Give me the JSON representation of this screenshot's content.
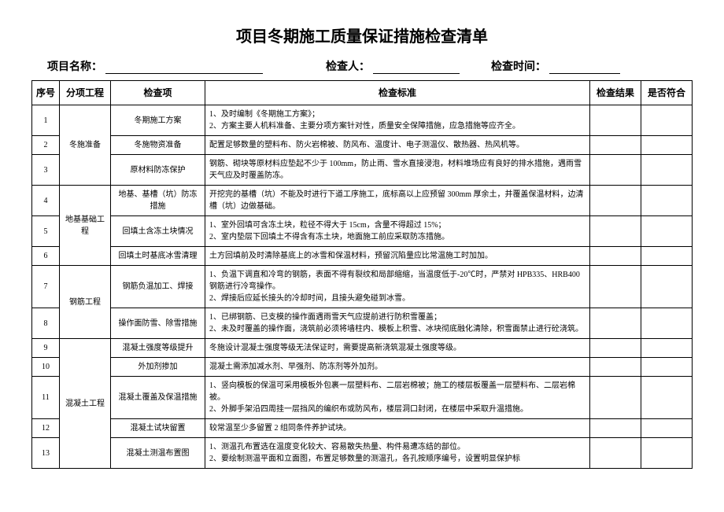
{
  "title": "项目冬期施工质量保证措施检查清单",
  "header": {
    "projectLabel": "项目名称：",
    "inspectorLabel": "检查人：",
    "timeLabel": "检查时间："
  },
  "columns": {
    "seq": "序号",
    "category": "分项工程",
    "item": "检查项",
    "standard": "检查标准",
    "result": "检查结果",
    "conform": "是否符合"
  },
  "rows": [
    {
      "seq": "1",
      "category": "冬施准备",
      "item": "冬期施工方案",
      "standard": "1、及时编制《冬期施工方案》；\n2、方案主要人机料准备、主要分项方案针对性，质量安全保障措施，应急措施等应齐全。"
    },
    {
      "seq": "2",
      "category": "",
      "item": "冬施物资准备",
      "standard": "配置足够数量的塑料布、防火岩棉被、防风布、温度计、电子测温仪、散热器、热风机等。"
    },
    {
      "seq": "3",
      "category": "",
      "item": "原材料防冻保护",
      "standard": "钢筋、砌块等原材料应垫起不少于 100mm，防止雨、雪水直接浸泡，材料堆场应有良好的排水措施，遇雨雪天气应及时覆盖防冻。"
    },
    {
      "seq": "4",
      "category": "地基基础工程",
      "item": "地基、基槽（坑）防冻措施",
      "standard": "开挖完的基槽（坑）不能及时进行下道工序施工，底标高以上应预留 300mm 厚余土，并覆盖保温材料，边清槽（坑）边做基础。"
    },
    {
      "seq": "5",
      "category": "",
      "item": "回填土含冻土块情况",
      "standard": "1、室外回填可含冻土块，粒径不得大于 15cm，含量不得超过 15%；\n2、室内垫层下回填土不得含有冻土块，地面施工前应采取防冻措施。"
    },
    {
      "seq": "6",
      "category": "",
      "item": "回填土时基底冰雪清理",
      "standard": "土方回填前及时清除基底上的冰雪和保温材料，预留沉陷量应比常温施工时加加。"
    },
    {
      "seq": "7",
      "category": "钢筋工程",
      "item": "钢筋负温加工、焊接",
      "standard": "1、负温下调直和冷弯的钢筋，表面不得有裂纹和局部缩缩，当温度低于-20℃时，严禁对 HPB335、HRB400 钢筋进行冷弯操作。\n2、焊接后应延长接头的冷却时间，且接头避免碰到冰雪。"
    },
    {
      "seq": "8",
      "category": "",
      "item": "操作面防雪、除雪措施",
      "standard": "1、已绑钢筋、已支模的操作面遇雨雪天气应提前进行防积雪覆盖；\n2、未及时覆盖的操作面，浇筑前必须将墙柱内、模板上积雪、冰块彻底融化清除，积雪面禁止进行砼浇筑。"
    },
    {
      "seq": "9",
      "category": "混凝土工程",
      "item": "混凝土强度等级提升",
      "standard": "冬施设计混凝土强度等级无法保证时，需要提高新浇筑混凝土强度等级。"
    },
    {
      "seq": "10",
      "category": "",
      "item": "外加剂掺加",
      "standard": "混凝土需添加减水剂、早强剂、防冻剂等外加剂。"
    },
    {
      "seq": "11",
      "category": "",
      "item": "混凝土覆盖及保温措施",
      "standard": "1、竖向模板的保温可采用模板外包裹一层塑料布、二层岩棉被；施工的楼层板覆盖一层塑料布、二层岩棉被。\n2、外脚手架沿四周挂一层挡风的编织布或防风布，楼层洞口封闭，在楼层中采取升温措施。"
    },
    {
      "seq": "12",
      "category": "",
      "item": "混凝土试块留置",
      "standard": "较常温至少多留置 2 组同条件养护试块。"
    },
    {
      "seq": "13",
      "category": "",
      "item": "混凝土测温布置图",
      "standard": "1、测温孔布置选在温度变化较大、容易散失热量、构件易遭冻结的部位。\n2、要绘制测温平面和立面图，布置足够数量的测温孔，各孔按顺序编号，设置明显保护标"
    }
  ],
  "catSpans": {
    "r0": 3,
    "r3": 3,
    "r6": 2,
    "r8": 5
  }
}
